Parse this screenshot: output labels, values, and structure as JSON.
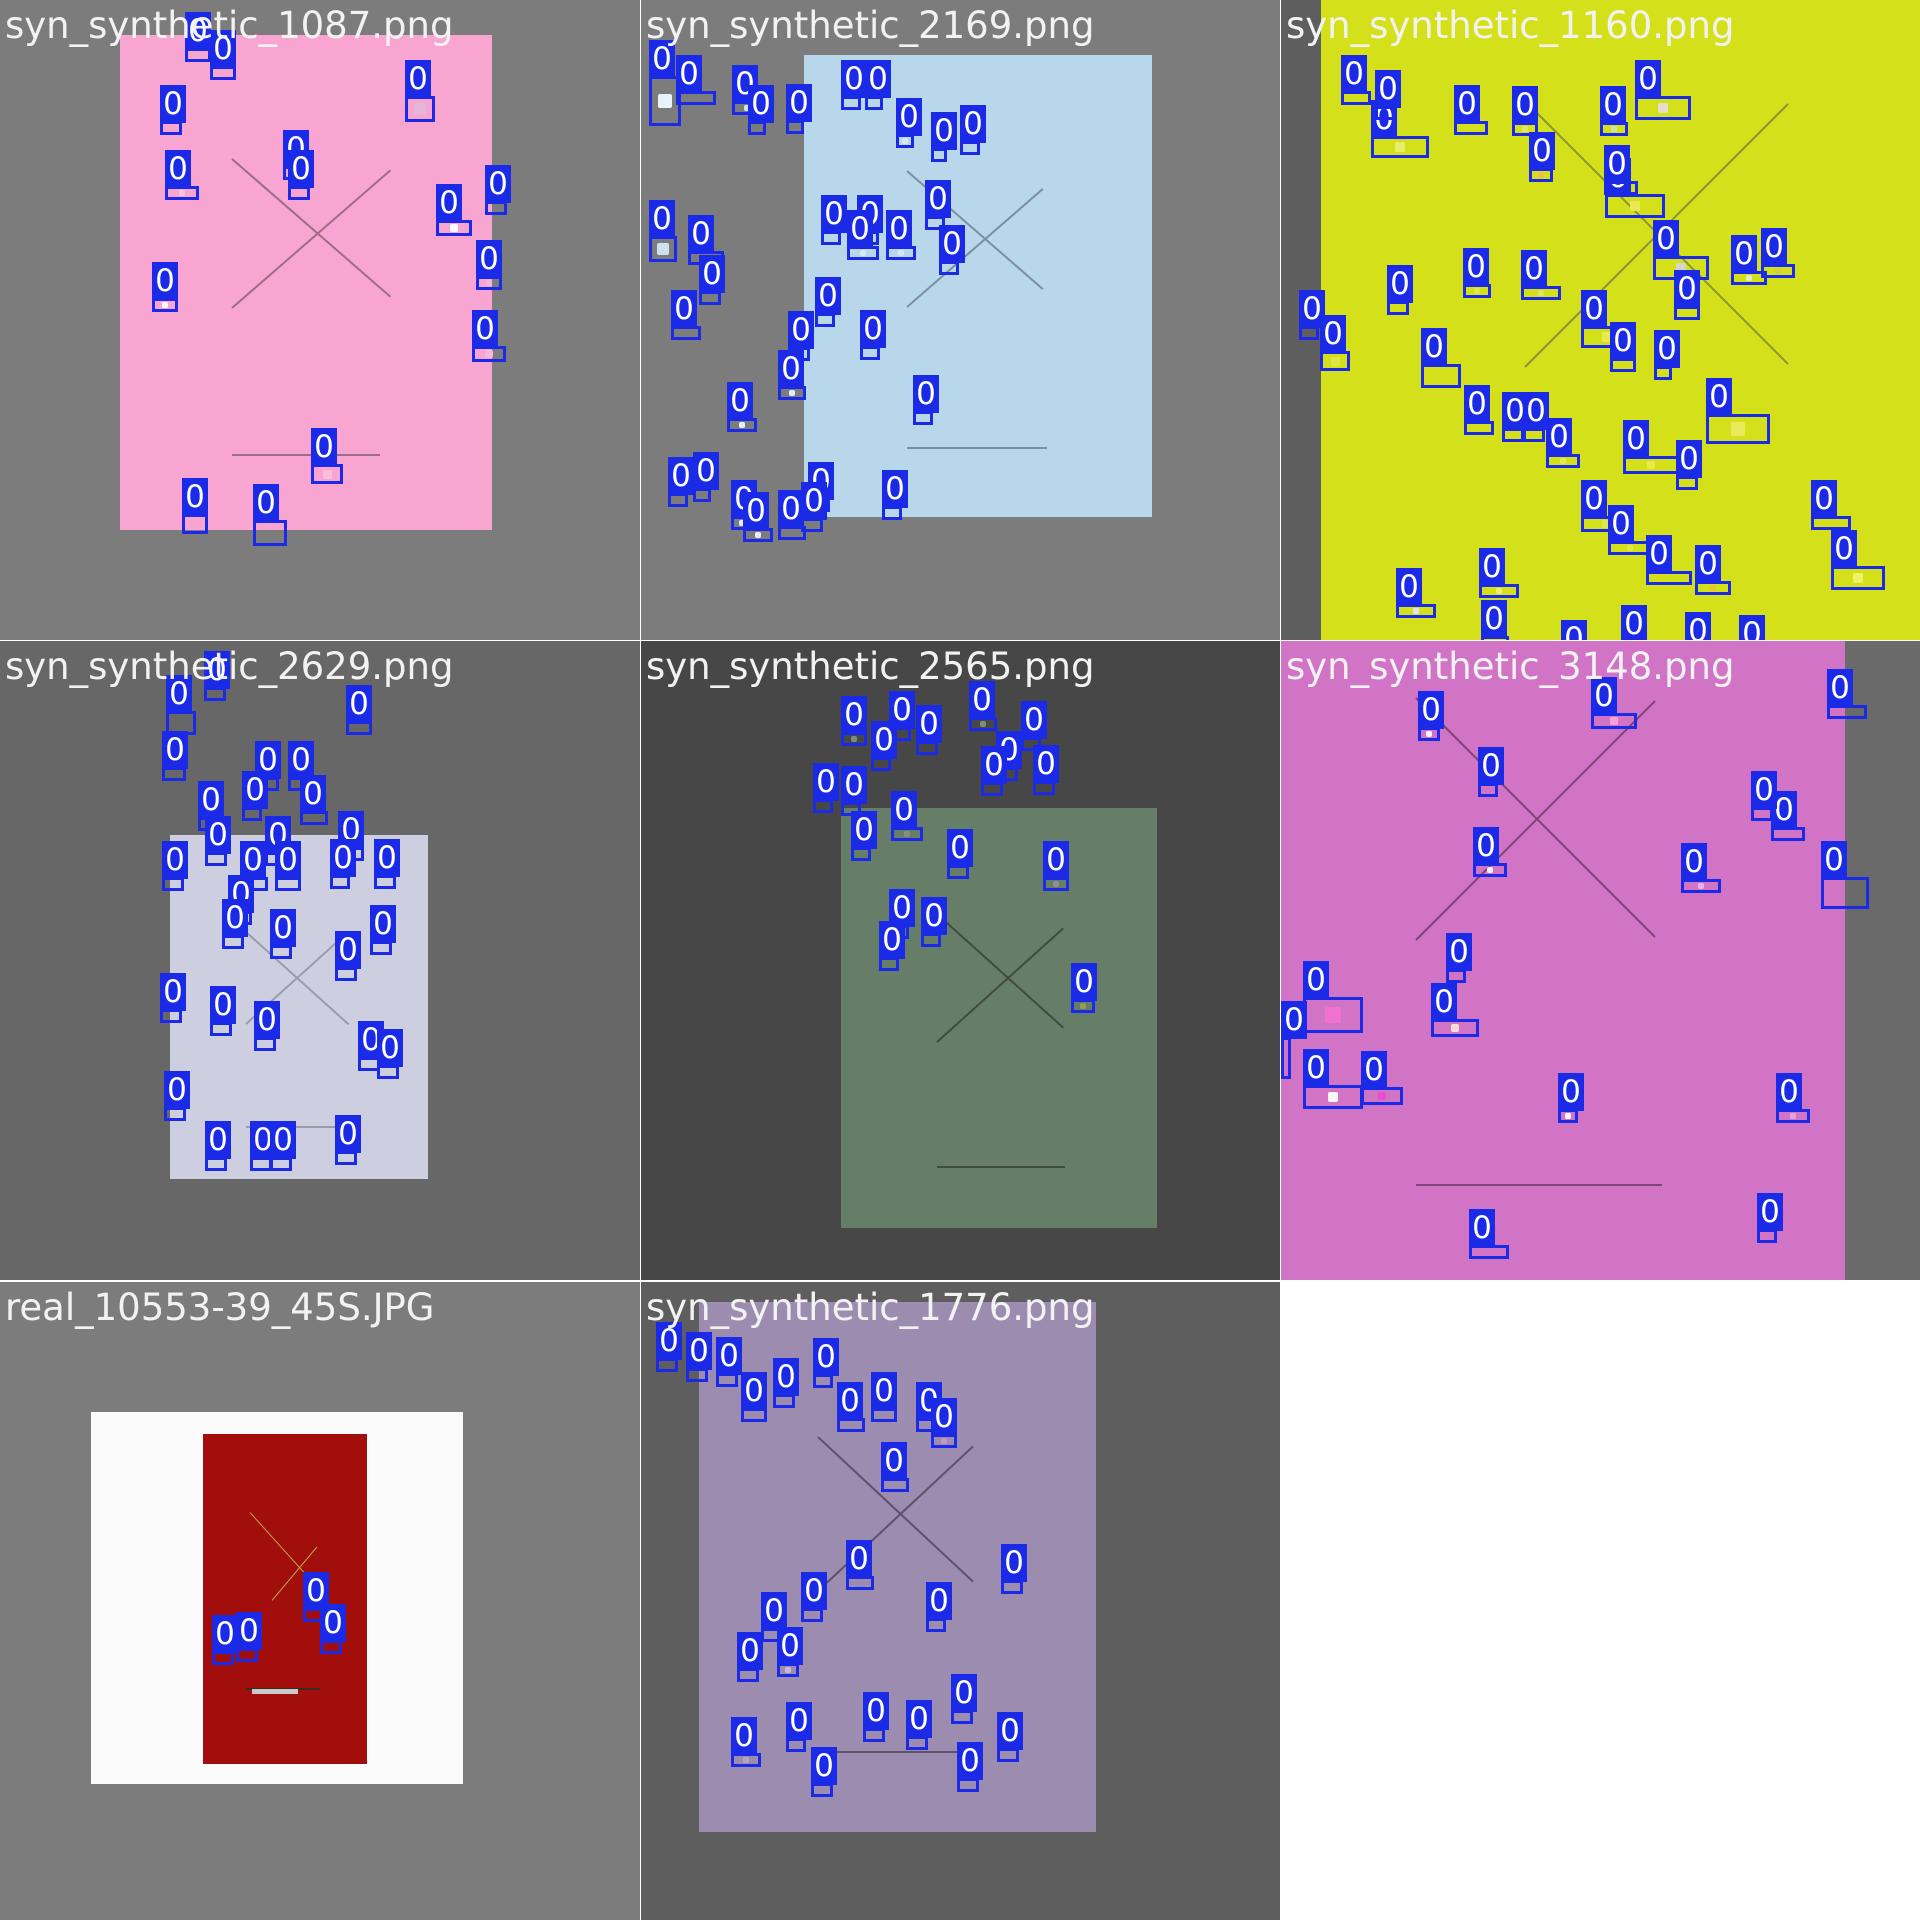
{
  "grid": {
    "tiles": [
      {
        "title": "syn_synthetic_1087.png"
      },
      {
        "title": "syn_synthetic_2169.png"
      },
      {
        "title": "syn_synthetic_1160.png"
      },
      {
        "title": "syn_synthetic_2629.png"
      },
      {
        "title": "syn_synthetic_2565.png"
      },
      {
        "title": "syn_synthetic_3148.png"
      },
      {
        "title": "real_10553-39_45S.JPG"
      },
      {
        "title": "syn_synthetic_1776.png"
      }
    ]
  },
  "detection_label": "0",
  "colors": {
    "detection_box": "#1a2ae6",
    "label_text": "#ffffff",
    "title_text": "#f2f2f2"
  }
}
